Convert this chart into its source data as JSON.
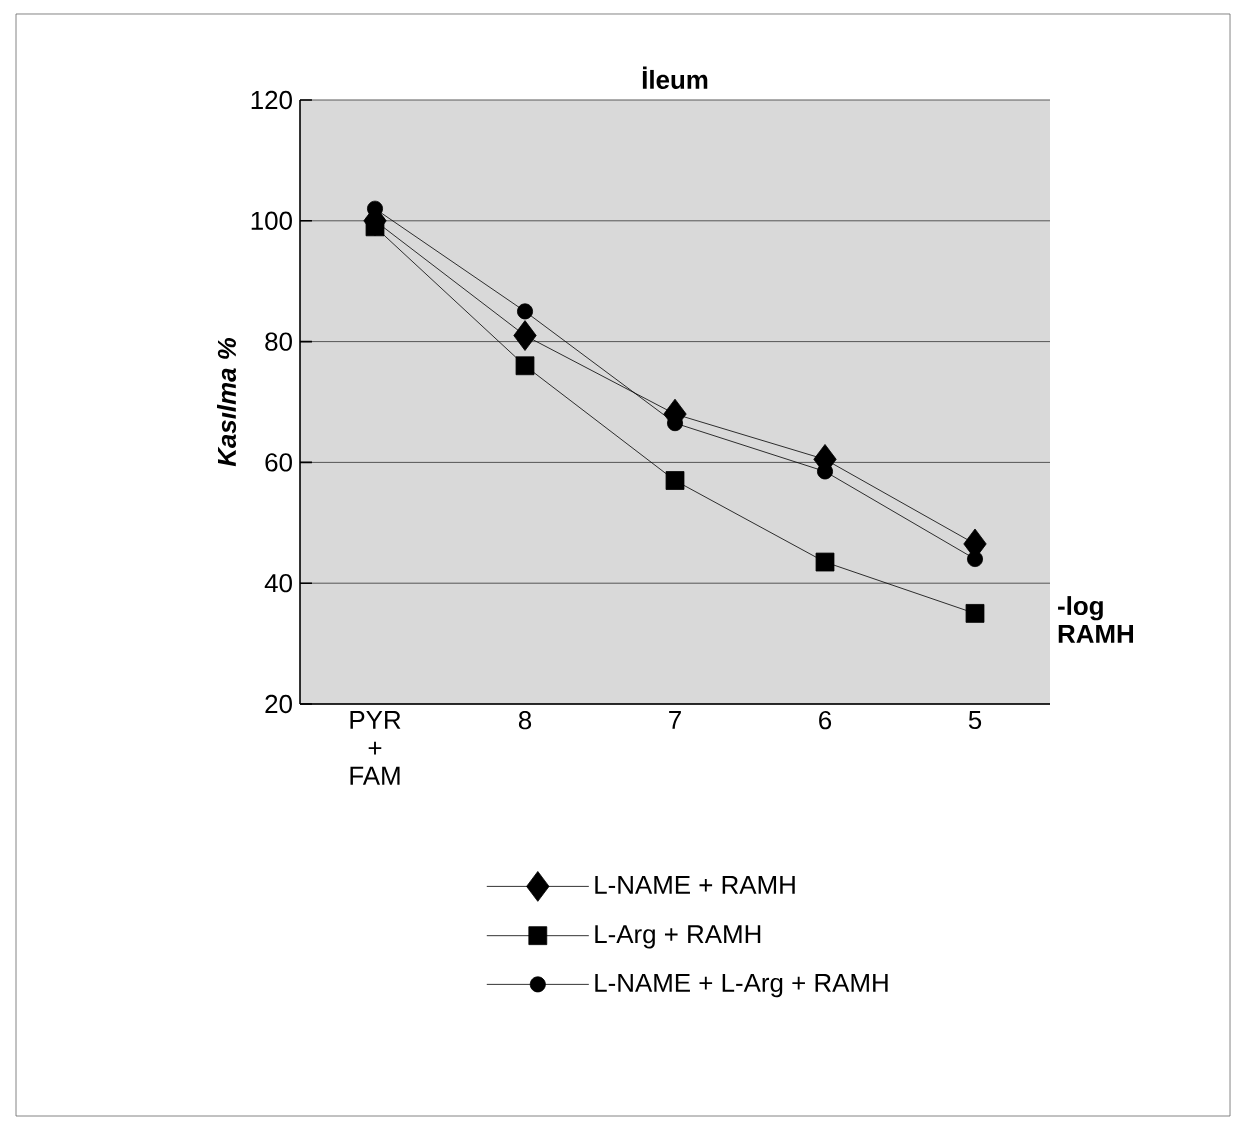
{
  "chart_data": {
    "type": "line",
    "title": "İleum",
    "ylabel": "Kasılma %",
    "xlabel": "-log RAMH",
    "categories": [
      "PYR + FAM",
      "8",
      "7",
      "6",
      "5"
    ],
    "ylim": [
      20,
      120
    ],
    "yticks": [
      20,
      40,
      60,
      80,
      100,
      120
    ],
    "grid": "y",
    "legend": "bottom",
    "series": [
      {
        "name": "L-NAME + RAMH",
        "color": "#000000",
        "marker": "diamond",
        "values": [
          100,
          81,
          68,
          60.5,
          46.5
        ]
      },
      {
        "name": "L-Arg + RAMH",
        "color": "#000000",
        "marker": "square",
        "values": [
          99,
          76,
          57,
          43.5,
          35
        ]
      },
      {
        "name": "L-NAME + L-Arg + RAMH",
        "color": "#000000",
        "marker": "circle",
        "values": [
          102,
          85,
          66.5,
          58.5,
          44
        ]
      }
    ]
  }
}
